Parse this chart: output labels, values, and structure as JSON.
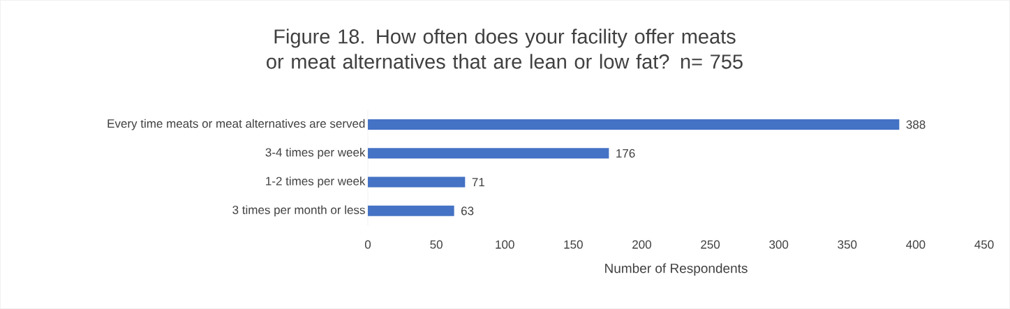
{
  "chart_data": {
    "type": "bar",
    "orientation": "horizontal",
    "title": "Figure 18. How often does your facility offer meats or meat alternatives that are lean or low fat? n= 755",
    "xlabel": "Number of Respondents",
    "categories": [
      "Every time meats or meat alternatives are served",
      "3-4 times per week",
      "1-2 times per week",
      "3 times per month or less"
    ],
    "values": [
      388,
      176,
      71,
      63
    ],
    "color": "#4472c4",
    "data_labels": true,
    "xlim": [
      0,
      450
    ],
    "xticks": [
      0,
      50,
      100,
      150,
      200,
      250,
      300,
      350,
      400,
      450
    ]
  }
}
